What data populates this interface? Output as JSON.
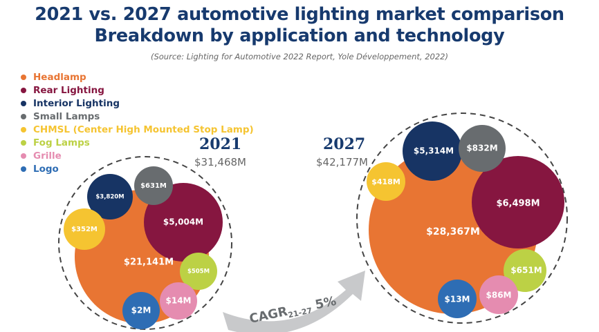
{
  "chart_data": {
    "type": "bubble",
    "title": "2021 vs. 2027 automotive lighting market comparison",
    "subtitle": "Breakdown by application and technology",
    "source": "(Source: Lighting for Automotive 2022 Report, Yole Développement, 2022)",
    "legend": [
      {
        "name": "Headlamp",
        "color": "#e87533"
      },
      {
        "name": "Rear Lighting",
        "color": "#861640"
      },
      {
        "name": "Interior Lighting",
        "color": "#173464"
      },
      {
        "name": "Small Lamps",
        "color": "#686c6f"
      },
      {
        "name": "CHMSL (Center High Mounted Stop Lamp)",
        "color": "#f5c431"
      },
      {
        "name": "Fog Lamps",
        "color": "#bcd145"
      },
      {
        "name": "Grille",
        "color": "#e58cb0"
      },
      {
        "name": "Logo",
        "color": "#2e6db4"
      }
    ],
    "legend_position": "top-left",
    "years": [
      {
        "year": "2021",
        "total": "$31,468M",
        "values": [
          "$21,141M",
          "$5,004M",
          "$3,820M",
          "$631M",
          "$352M",
          "$505M",
          "$14M",
          "$2M"
        ]
      },
      {
        "year": "2027",
        "total": "$42,177M",
        "values": [
          "$28,367M",
          "$6,498M",
          "$5,314M",
          "$832M",
          "$418M",
          "$651M",
          "$86M",
          "$13M"
        ]
      }
    ],
    "cagr": {
      "label": "CAGR",
      "sub": "21-27",
      "value": "5%"
    }
  }
}
